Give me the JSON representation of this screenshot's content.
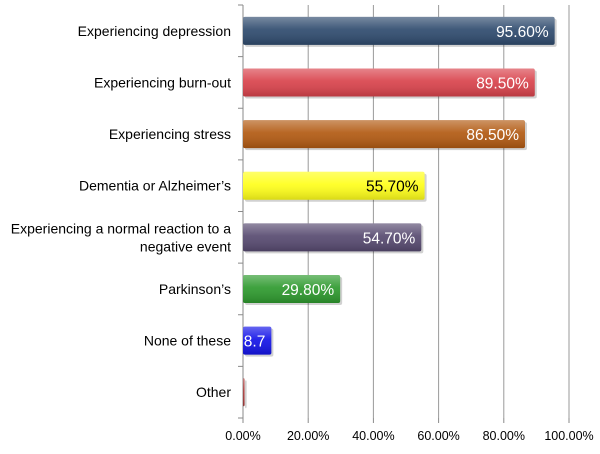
{
  "chart_data": {
    "type": "bar",
    "orientation": "horizontal",
    "title": "",
    "xlabel": "",
    "ylabel": "",
    "categories": [
      [
        "Experiencing depression"
      ],
      [
        "Experiencing burn-out"
      ],
      [
        "Experiencing stress"
      ],
      [
        "Dementia or Alzheimer’s"
      ],
      [
        "Experiencing a normal reaction to a",
        "negative event"
      ],
      [
        "Parkinson’s"
      ],
      [
        "None of these"
      ],
      [
        "Other"
      ]
    ],
    "values": [
      95.6,
      89.5,
      86.5,
      55.7,
      54.7,
      29.8,
      8.7,
      0.5
    ],
    "data_labels": [
      "95.60%",
      "89.50%",
      "86.50%",
      "55.70%",
      "54.70%",
      "29.80%",
      "8.7",
      ""
    ],
    "colors": [
      "#2f4b6e",
      "#d9434c",
      "#b25a12",
      "#ffff1a",
      "#574a70",
      "#2e9a2e",
      "#1414e8",
      "#a53a3a"
    ],
    "label_colors": [
      "#ffffff",
      "#ffffff",
      "#ffffff",
      "#000000",
      "#ffffff",
      "#ffffff",
      "#ffffff",
      "#ffffff"
    ],
    "xlim": [
      0,
      100
    ],
    "x_ticks": [
      0,
      20,
      40,
      60,
      80,
      100
    ],
    "x_tick_labels": [
      "0.00%",
      "20.00%",
      "40.00%",
      "60.00%",
      "80.00%",
      "100.00%"
    ],
    "grid": true,
    "legend": "none"
  }
}
